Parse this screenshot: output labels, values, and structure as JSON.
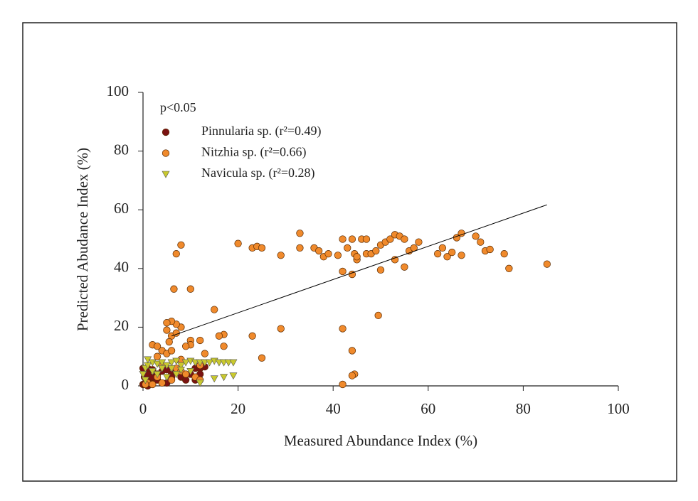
{
  "chart_data": {
    "type": "scatter",
    "xlabel": "Measured Abundance Index (%)",
    "ylabel": "Predicted Abudance Index (%)",
    "annotation": "p<0.05",
    "xlim": [
      0,
      100
    ],
    "ylim": [
      0,
      100
    ],
    "xticks": [
      0,
      20,
      40,
      60,
      80,
      100
    ],
    "yticks": [
      0,
      20,
      40,
      60,
      80,
      100
    ],
    "series": [
      {
        "name": "Pinnularia sp. (r²=0.49)",
        "color": "#7a1212",
        "marker": "circle",
        "x": [
          0,
          0.5,
          1,
          1,
          2,
          0.3,
          0.5,
          1,
          2,
          3,
          4,
          5,
          6,
          7,
          8,
          9,
          10,
          11,
          12,
          13,
          0,
          1,
          2,
          3,
          5,
          6,
          11,
          12
        ],
        "y": [
          0.5,
          1,
          2,
          0,
          1,
          3,
          5,
          4,
          3,
          4,
          5,
          5.5,
          4,
          5,
          3,
          2,
          4,
          6,
          6,
          6.5,
          6,
          6,
          5.5,
          2,
          1,
          3,
          2,
          4
        ]
      },
      {
        "name": "Nitzhia sp. (r²=0.66)",
        "color": "#f08a2c",
        "marker": "circle",
        "x": [
          7,
          8,
          6.5,
          10,
          15,
          20,
          23,
          24,
          25,
          29,
          33,
          33,
          36,
          37,
          38,
          39,
          41,
          42,
          42,
          43,
          44,
          44,
          44.5,
          45,
          45,
          46,
          47,
          47,
          48,
          49,
          50,
          50,
          51,
          52,
          53,
          53,
          54,
          55,
          55,
          56,
          57,
          58,
          62,
          63,
          64,
          65,
          66,
          67,
          67,
          70,
          71,
          72,
          73,
          76,
          77,
          85,
          42,
          44,
          44.5,
          44,
          42,
          49.5,
          29,
          25,
          23,
          17,
          16,
          17,
          12,
          13,
          10,
          10,
          9,
          8,
          7,
          6,
          5,
          5,
          6,
          5.5,
          7,
          4,
          5,
          6,
          3,
          2,
          3,
          4,
          7,
          8,
          9,
          11,
          12,
          6,
          3,
          1,
          2,
          0.5,
          4,
          8,
          12
        ],
        "y": [
          45,
          48,
          33,
          33,
          26,
          48.5,
          47,
          47.5,
          47,
          44.5,
          52,
          47,
          47,
          46,
          44,
          45,
          44.5,
          50,
          39,
          47,
          50,
          38,
          45,
          43,
          44,
          50,
          50,
          45,
          45,
          46,
          48,
          39.5,
          49,
          50,
          51.5,
          43,
          51,
          50,
          40.5,
          46,
          47,
          49,
          45,
          47,
          44,
          45.5,
          50.5,
          52,
          44.5,
          51,
          49,
          46,
          46.5,
          45,
          40,
          41.5,
          19.5,
          12,
          4,
          3.5,
          0.5,
          24,
          19.5,
          9.5,
          17,
          17.5,
          17,
          13.5,
          15.5,
          11,
          15.5,
          14,
          13.5,
          20,
          21,
          22,
          21.5,
          19,
          17,
          15,
          18,
          12,
          11,
          12,
          10,
          14,
          13.5,
          7,
          6,
          5,
          4,
          3,
          2,
          2,
          3,
          1,
          0.5,
          0.5,
          1,
          9,
          7
        ]
      },
      {
        "name": "Navicula sp. (r²=0.28)",
        "color": "#c9c92e",
        "marker": "triangle",
        "x": [
          0,
          0.5,
          1,
          1,
          2,
          3,
          4,
          5,
          6,
          7,
          8,
          9,
          10,
          11,
          12,
          13,
          14,
          15,
          16,
          17,
          18,
          19,
          19,
          17,
          15,
          12,
          10,
          8,
          6,
          4,
          2,
          3,
          7,
          5,
          0.5
        ],
        "y": [
          4,
          6,
          7,
          9,
          8,
          7.5,
          8,
          7,
          8,
          8.5,
          7,
          8,
          8.5,
          8,
          8,
          8,
          8,
          8.5,
          8,
          8,
          8,
          8,
          3.5,
          3,
          2.5,
          1,
          5,
          5.5,
          6,
          6,
          5,
          4,
          4,
          3,
          2
        ]
      }
    ],
    "trendline": {
      "color": "#000000",
      "x": [
        6,
        85
      ],
      "y": [
        17,
        61.7
      ]
    }
  }
}
